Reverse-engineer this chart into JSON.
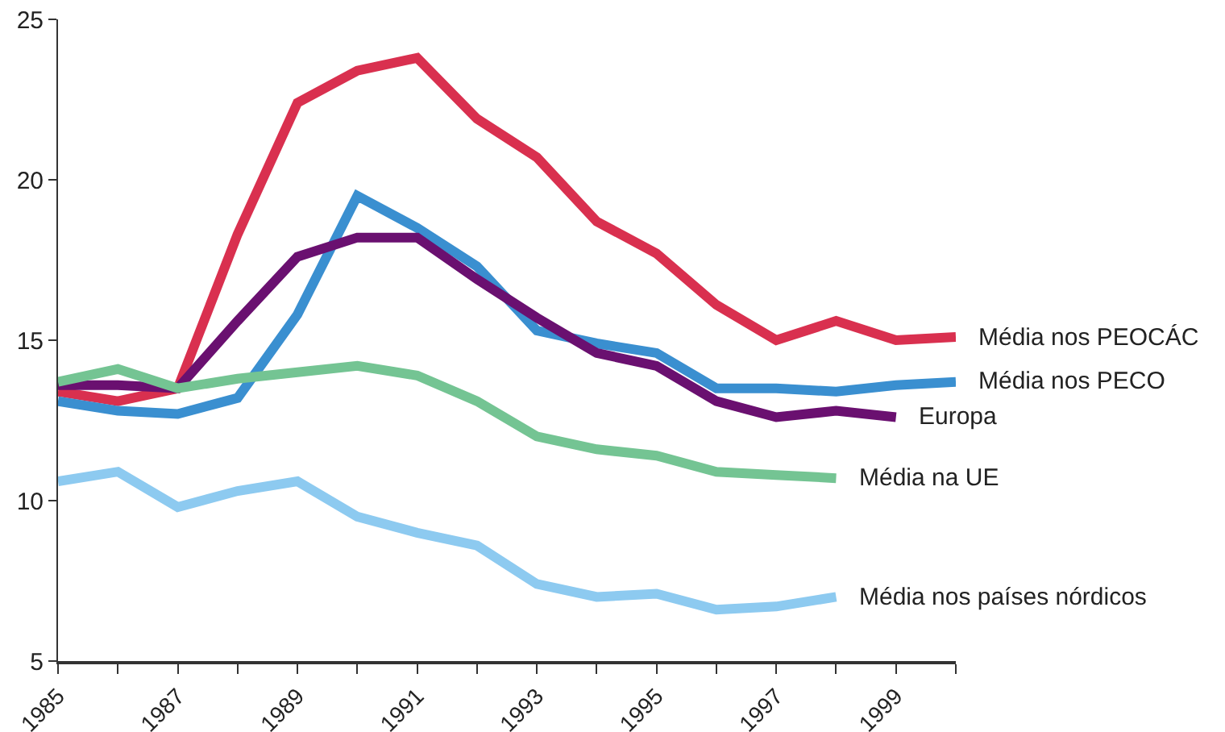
{
  "chart_data": {
    "type": "line",
    "x": [
      1985,
      1986,
      1987,
      1988,
      1989,
      1990,
      1991,
      1992,
      1993,
      1994,
      1995,
      1996,
      1997,
      1998,
      1999,
      2000
    ],
    "xlim": [
      1985,
      2000
    ],
    "xticks": [
      1985,
      {
        "value": 1986,
        "label": null
      },
      1987,
      {
        "value": 1988,
        "label": null
      },
      1989,
      {
        "value": 1990,
        "label": null
      },
      1991,
      {
        "value": 1992,
        "label": null
      },
      1993,
      {
        "value": 1994,
        "label": null
      },
      1995,
      {
        "value": 1996,
        "label": null
      },
      1997,
      {
        "value": 1998,
        "label": null
      },
      1999,
      {
        "value": 2000,
        "label": null
      }
    ],
    "ylim": [
      5,
      25
    ],
    "yticks": [
      5,
      10,
      15,
      20,
      25
    ],
    "grid": false,
    "legend": false,
    "marker": "none",
    "line_style": "solid",
    "series": [
      {
        "name": "Média nos PEOCÁC",
        "color": "#d9304f",
        "values": [
          13.4,
          13.1,
          13.5,
          18.3,
          22.4,
          23.4,
          23.8,
          21.9,
          20.7,
          18.7,
          17.7,
          16.1,
          15.0,
          15.6,
          15.0,
          15.1
        ]
      },
      {
        "name": "Média nos PECO",
        "color": "#3a8fd0",
        "values": [
          13.1,
          12.8,
          12.7,
          13.2,
          15.8,
          19.5,
          18.5,
          17.3,
          15.3,
          14.9,
          14.6,
          13.5,
          13.5,
          13.4,
          13.6,
          13.7
        ]
      },
      {
        "name": "Europa",
        "color": "#6a1070",
        "values": [
          13.6,
          13.6,
          13.5,
          15.6,
          17.6,
          18.2,
          18.2,
          16.9,
          15.7,
          14.6,
          14.2,
          13.1,
          12.6,
          12.8,
          12.6,
          null
        ]
      },
      {
        "name": "Média na UE",
        "color": "#74c493",
        "values": [
          13.7,
          14.1,
          13.5,
          13.8,
          14.0,
          14.2,
          13.9,
          13.1,
          12.0,
          11.6,
          11.4,
          10.9,
          10.8,
          10.7,
          null,
          null
        ]
      },
      {
        "name": "Média nos países nórdicos",
        "color": "#8dcaf0",
        "values": [
          10.6,
          10.9,
          9.8,
          10.3,
          10.6,
          9.5,
          9.0,
          8.6,
          7.4,
          7.0,
          7.1,
          6.6,
          6.7,
          7.0,
          null,
          null
        ]
      }
    ]
  }
}
